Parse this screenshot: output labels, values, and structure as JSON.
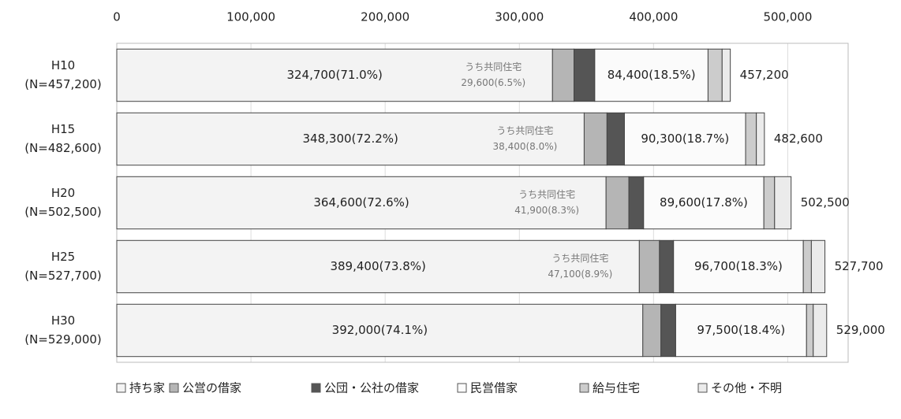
{
  "chart_data": {
    "type": "stacked_barh",
    "categories": [
      "H10",
      "H15",
      "H20",
      "H25",
      "H30"
    ],
    "category_sublabels": [
      "(N=457,200)",
      "(N=482,600)",
      "(N=502,500)",
      "(N=527,700)",
      "(N=529,000)"
    ],
    "series": [
      {
        "name": "持ち家",
        "color": "#f3f3f3",
        "values": [
          324700,
          348300,
          364600,
          389400,
          392000
        ],
        "value_labels": [
          "324,700(71.0%)",
          "348,300(72.2%)",
          "364,600(72.6%)",
          "389,400(73.8%)",
          "392,000(74.1%)"
        ]
      },
      {
        "name": "公営の借家",
        "color": "#b5b5b5",
        "values": [
          16000,
          17000,
          17000,
          15000,
          13500
        ]
      },
      {
        "name": "公団・公社の借家",
        "color": "#555555",
        "values": [
          15500,
          13000,
          11000,
          10500,
          11000
        ]
      },
      {
        "name": "民営借家",
        "color": "#fbfbfb",
        "values": [
          84400,
          90300,
          89600,
          96700,
          97500
        ],
        "value_labels": [
          "84,400(18.5%)",
          "90,300(18.7%)",
          "89,600(17.8%)",
          "96,700(18.3%)",
          "97,500(18.4%)"
        ]
      },
      {
        "name": "給与住宅",
        "color": "#cccccc",
        "values": [
          10500,
          8000,
          8000,
          6000,
          5000
        ]
      },
      {
        "name": "その他・不明",
        "color": "#ebebeb",
        "values": [
          6100,
          6000,
          12300,
          10100,
          10000
        ]
      }
    ],
    "totals": [
      457200,
      482600,
      502500,
      527700,
      529000
    ],
    "total_labels": [
      "457,200",
      "482,600",
      "502,500",
      "527,700",
      "529,000"
    ],
    "annotations": [
      {
        "text": "うち共同住宅",
        "label": "29,600(6.5%)"
      },
      {
        "text": "うち共同住宅",
        "label": "38,400(8.0%)"
      },
      {
        "text": "うち共同住宅",
        "label": "41,900(8.3%)"
      },
      {
        "text": "うち共同住宅",
        "label": "47,100(8.9%)"
      }
    ],
    "xlim": [
      0,
      545000
    ],
    "xticks": [
      0,
      {
        "value": 100000,
        "label": "100,000"
      },
      {
        "value": 200000,
        "label": "200,000"
      },
      {
        "value": 300000,
        "label": "300,000"
      },
      {
        "value": 400000,
        "label": "400,000"
      },
      {
        "value": 500000,
        "label": "500,000"
      }
    ],
    "grid": true
  }
}
